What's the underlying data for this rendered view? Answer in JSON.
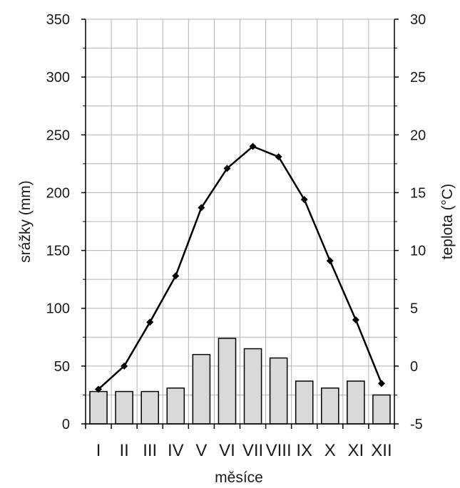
{
  "chart_data": {
    "type": "bar+line",
    "xlabel": "měsíce",
    "ylabel_left": "srážky (mm)",
    "ylabel_right": "teplota (°C)",
    "categories": [
      "I",
      "II",
      "III",
      "IV",
      "V",
      "VI",
      "VII",
      "VIII",
      "IX",
      "X",
      "XI",
      "XII"
    ],
    "ylim_left": [
      0,
      350
    ],
    "ylim_right": [
      -5,
      30
    ],
    "yticks_left": [
      0,
      50,
      100,
      150,
      200,
      250,
      300,
      350
    ],
    "yticks_right": [
      -5,
      0,
      5,
      10,
      15,
      20,
      25,
      30
    ],
    "grid": true,
    "series": [
      {
        "kind": "bar",
        "axis": "left",
        "values": [
          28,
          28,
          28,
          31,
          60,
          74,
          65,
          57,
          37,
          31,
          37,
          25
        ],
        "color": "#d9d9d9"
      },
      {
        "kind": "line",
        "axis": "right",
        "values": [
          -2,
          0,
          3.8,
          7.8,
          13.7,
          17.1,
          19,
          18.1,
          14.4,
          9.1,
          4,
          -1.5
        ],
        "color": "#000000"
      }
    ]
  }
}
